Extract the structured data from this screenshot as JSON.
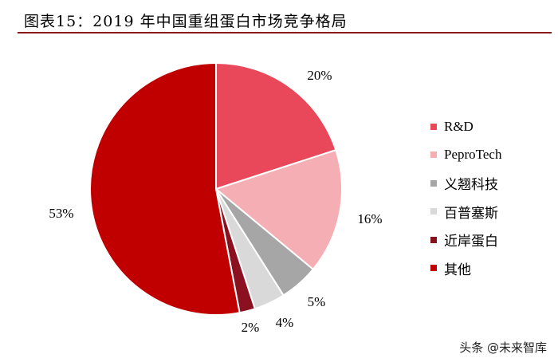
{
  "title": "图表15：2019 年中国重组蛋白市场竞争格局",
  "chart_data": {
    "type": "pie",
    "title": "图表15：2019 年中国重组蛋白市场竞争格局",
    "categories": [
      "R&D",
      "PeproTech",
      "义翘科技",
      "百普塞斯",
      "近岸蛋白",
      "其他"
    ],
    "values": [
      20,
      16,
      5,
      4,
      2,
      53
    ],
    "labels": [
      "20%",
      "16%",
      "5%",
      "4%",
      "2%",
      "53%"
    ],
    "colors": [
      "#e8485a",
      "#f5aeb4",
      "#a6a6a6",
      "#d9d9d9",
      "#8b1020",
      "#c00000"
    ],
    "legend_position": "right"
  },
  "watermark": "头条 @未来智库"
}
